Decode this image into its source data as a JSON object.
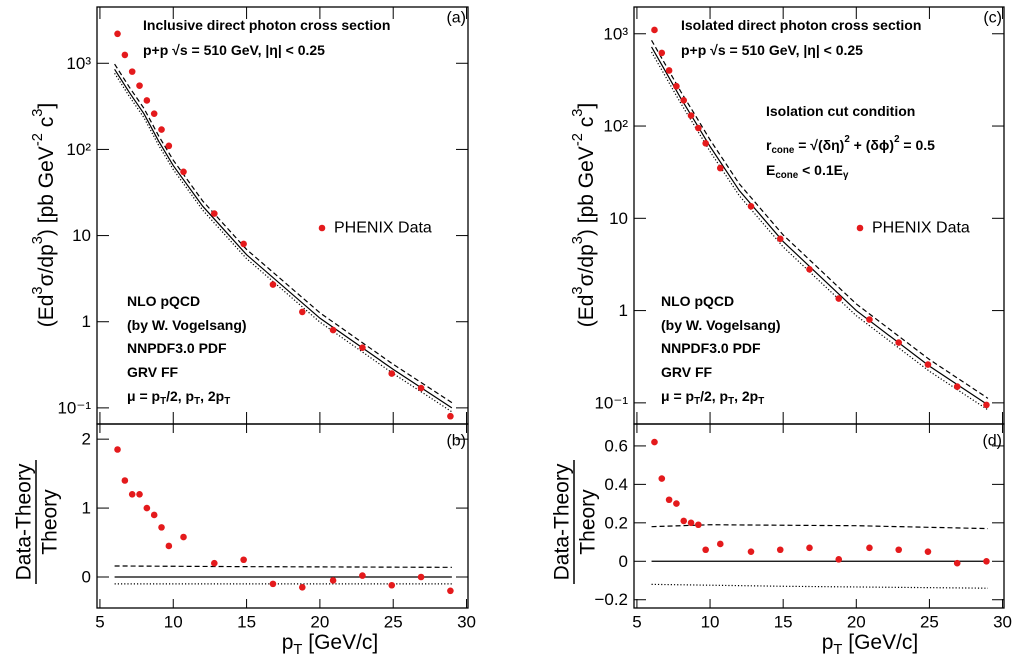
{
  "chart_data": [
    {
      "type": "scatter",
      "log_y": true,
      "panel_label": "(a)",
      "color": "#e41a1c",
      "x": [
        6.2,
        6.7,
        7.2,
        7.7,
        8.2,
        8.7,
        9.2,
        9.7,
        10.7,
        12.8,
        14.8,
        16.8,
        18.8,
        20.9,
        22.9,
        24.9,
        26.9,
        28.9
      ],
      "values": [
        2200,
        1250,
        800,
        550,
        370,
        260,
        170,
        110,
        55,
        18,
        8,
        2.7,
        1.3,
        0.8,
        0.5,
        0.25,
        0.17,
        0.08
      ],
      "xlim": [
        4.8,
        30.1
      ],
      "xticks": [
        5,
        10,
        15,
        20,
        25,
        30
      ],
      "ylim": [
        0.065,
        4500
      ],
      "yticks": [
        {
          "value": 1000,
          "label": "10³"
        },
        {
          "value": 100,
          "label": "10²"
        },
        10,
        1,
        {
          "value": 0.1,
          "label": "10⁻¹"
        }
      ],
      "y_label": [
        {
          "text": "(Ed"
        },
        {
          "text": "3",
          "shift": "sup"
        },
        {
          "text": "σ/dp"
        },
        {
          "text": "3",
          "shift": "sup"
        },
        {
          "text": ") [pb GeV"
        },
        {
          "text": "-2",
          "shift": "sup"
        },
        {
          "text": " c"
        },
        {
          "text": "3",
          "shift": "sup"
        },
        {
          "text": "]"
        }
      ],
      "legend": "PHENIX Data",
      "annotations": [
        [
          {
            "text": "Inclusive direct photon cross section"
          }
        ],
        [
          {
            "text": "p+p  √s = 510 GeV, |η| < 0.25"
          }
        ],
        [
          {
            "text": "NLO pQCD"
          }
        ],
        [
          {
            "text": "(by W. Vogelsang)"
          }
        ],
        [
          {
            "text": "NNPDF3.0 PDF"
          }
        ],
        [
          {
            "text": "GRV FF"
          }
        ],
        [
          {
            "text": "μ = p"
          },
          {
            "text": "T",
            "shift": "sub"
          },
          {
            "text": "/2, p"
          },
          {
            "text": "T",
            "shift": "sub"
          },
          {
            "text": ", 2p"
          },
          {
            "text": "T",
            "shift": "sub"
          }
        ]
      ],
      "curves": [
        {
          "style": "solid",
          "x": [
            6,
            7,
            8,
            9,
            10,
            12,
            15,
            20,
            25,
            29
          ],
          "values": [
            850,
            460,
            260,
            125,
            65,
            22,
            6,
            1.1,
            0.28,
            0.1
          ]
        },
        {
          "style": "dashed",
          "x": [
            6,
            7,
            8,
            9,
            10,
            12,
            15,
            20,
            25,
            29
          ],
          "values": [
            980,
            530,
            300,
            144,
            75,
            25.3,
            6.9,
            1.27,
            0.32,
            0.115
          ]
        },
        {
          "style": "dotted",
          "x": [
            6,
            7,
            8,
            9,
            10,
            12,
            15,
            20,
            25,
            29
          ],
          "values": [
            765,
            414,
            234,
            112,
            58.5,
            19.8,
            5.4,
            0.99,
            0.25,
            0.09
          ]
        }
      ]
    },
    {
      "type": "scatter",
      "log_y": false,
      "panel_label": "(b)",
      "color": "#e41a1c",
      "x": [
        6.2,
        6.7,
        7.2,
        7.7,
        8.2,
        8.7,
        9.2,
        9.7,
        10.7,
        12.8,
        14.8,
        16.8,
        18.8,
        20.9,
        22.9,
        24.9,
        26.9,
        28.9
      ],
      "values": [
        1.85,
        1.4,
        1.2,
        1.2,
        1.0,
        0.9,
        0.72,
        0.45,
        0.58,
        0.2,
        0.25,
        -0.1,
        -0.15,
        -0.05,
        0.02,
        -0.12,
        0,
        -0.2
      ],
      "xlim": [
        4.8,
        30.1
      ],
      "xticks": [
        5,
        10,
        15,
        20,
        25,
        30
      ],
      "ylim": [
        -0.45,
        2.22
      ],
      "yticks": [
        0,
        1,
        2
      ],
      "ratio_top": "Data-Theory",
      "ratio_bottom": "Theory",
      "x_label": [
        {
          "text": "p"
        },
        {
          "text": "T",
          "shift": "sub"
        },
        {
          "text": " [GeV/c]"
        }
      ],
      "curves": [
        {
          "style": "solid",
          "x": [
            6,
            29
          ],
          "values": [
            0,
            0
          ]
        },
        {
          "style": "dashed",
          "x": [
            6,
            15,
            29
          ],
          "values": [
            0.16,
            0.15,
            0.14
          ]
        },
        {
          "style": "dotted",
          "x": [
            6,
            15,
            29
          ],
          "values": [
            -0.1,
            -0.1,
            -0.1
          ]
        }
      ]
    },
    {
      "type": "scatter",
      "log_y": true,
      "panel_label": "(c)",
      "color": "#e41a1c",
      "x": [
        6.2,
        6.7,
        7.2,
        7.7,
        8.2,
        8.7,
        9.2,
        9.7,
        10.7,
        12.8,
        14.8,
        16.8,
        18.8,
        20.9,
        22.9,
        24.9,
        26.9,
        28.9
      ],
      "values": [
        1100,
        620,
        400,
        270,
        190,
        130,
        95,
        65,
        35,
        13.5,
        6,
        2.8,
        1.35,
        0.8,
        0.45,
        0.26,
        0.15,
        0.095
      ],
      "xlim": [
        4.8,
        30.1
      ],
      "xticks": [
        5,
        10,
        15,
        20,
        25,
        30
      ],
      "ylim": [
        0.059,
        1950
      ],
      "yticks": [
        {
          "value": 1000,
          "label": "10³"
        },
        {
          "value": 100,
          "label": "10²"
        },
        10,
        1,
        {
          "value": 0.1,
          "label": "10⁻¹"
        }
      ],
      "y_label": [
        {
          "text": "(Ed"
        },
        {
          "text": "3",
          "shift": "sup"
        },
        {
          "text": "σ/dp"
        },
        {
          "text": "3",
          "shift": "sup"
        },
        {
          "text": ") [pb GeV"
        },
        {
          "text": "-2",
          "shift": "sup"
        },
        {
          "text": " c"
        },
        {
          "text": "3",
          "shift": "sup"
        },
        {
          "text": "]"
        }
      ],
      "legend": "PHENIX Data",
      "annotations": [
        [
          {
            "text": "Isolated direct photon cross section"
          }
        ],
        [
          {
            "text": "p+p  √s = 510 GeV, |η| < 0.25"
          }
        ],
        [
          {
            "text": "Isolation cut condition"
          }
        ],
        [
          {
            "text": "r"
          },
          {
            "text": "cone",
            "shift": "sub"
          },
          {
            "text": " = √"
          },
          {
            "text": "(δη)"
          },
          {
            "text": "2",
            "shift": "sup"
          },
          {
            "text": " + (δϕ)"
          },
          {
            "text": "2",
            "shift": "sup"
          },
          {
            "text": " = 0.5"
          }
        ],
        [
          {
            "text": "E"
          },
          {
            "text": "cone",
            "shift": "sub"
          },
          {
            "text": " < 0.1E"
          },
          {
            "text": "γ",
            "shift": "sub"
          }
        ],
        [
          {
            "text": "NLO pQCD"
          }
        ],
        [
          {
            "text": "(by W. Vogelsang)"
          }
        ],
        [
          {
            "text": "NNPDF3.0 PDF"
          }
        ],
        [
          {
            "text": "GRV FF"
          }
        ],
        [
          {
            "text": "μ = p"
          },
          {
            "text": "T",
            "shift": "sub"
          },
          {
            "text": "/2, p"
          },
          {
            "text": "T",
            "shift": "sub"
          },
          {
            "text": ", 2p"
          },
          {
            "text": "T",
            "shift": "sub"
          }
        ]
      ],
      "curves": [
        {
          "style": "solid",
          "x": [
            6,
            7,
            8,
            9,
            10,
            12,
            15,
            20,
            25,
            29
          ],
          "values": [
            720,
            380,
            200,
            110,
            60,
            20,
            5.6,
            1.0,
            0.25,
            0.095
          ]
        },
        {
          "style": "dashed",
          "x": [
            6,
            7,
            8,
            9,
            10,
            12,
            15,
            20,
            25,
            29
          ],
          "values": [
            850,
            448,
            236,
            130,
            71,
            23.6,
            6.6,
            1.18,
            0.295,
            0.112
          ]
        },
        {
          "style": "dotted",
          "x": [
            6,
            7,
            8,
            9,
            10,
            12,
            15,
            20,
            25,
            29
          ],
          "values": [
            634,
            334,
            176,
            97,
            53,
            17.6,
            4.9,
            0.88,
            0.22,
            0.084
          ]
        }
      ]
    },
    {
      "type": "scatter",
      "log_y": false,
      "panel_label": "(d)",
      "color": "#e41a1c",
      "x": [
        6.2,
        6.7,
        7.2,
        7.7,
        8.2,
        8.7,
        9.2,
        9.7,
        10.7,
        12.8,
        14.8,
        16.8,
        18.8,
        20.9,
        22.9,
        24.9,
        26.9,
        28.9
      ],
      "values": [
        0.62,
        0.43,
        0.32,
        0.3,
        0.21,
        0.2,
        0.19,
        0.06,
        0.09,
        0.05,
        0.06,
        0.07,
        0.01,
        0.07,
        0.06,
        0.05,
        -0.01,
        0
      ],
      "xlim": [
        4.8,
        30.1
      ],
      "xticks": [
        5,
        10,
        15,
        20,
        25,
        30
      ],
      "ylim": [
        -0.243,
        0.714
      ],
      "yticks": [
        {
          "value": -0.2,
          "label": "−0.2"
        },
        0,
        0.2,
        0.4,
        0.6
      ],
      "ratio_top": "Data-Theory",
      "ratio_bottom": "Theory",
      "x_label": [
        {
          "text": "p"
        },
        {
          "text": "T",
          "shift": "sub"
        },
        {
          "text": " [GeV/c]"
        }
      ],
      "curves": [
        {
          "style": "solid",
          "x": [
            6,
            29
          ],
          "values": [
            0,
            0
          ]
        },
        {
          "style": "dashed",
          "x": [
            6,
            10,
            20,
            29
          ],
          "values": [
            0.18,
            0.19,
            0.185,
            0.17
          ]
        },
        {
          "style": "dotted",
          "x": [
            6,
            15,
            29
          ],
          "values": [
            -0.12,
            -0.13,
            -0.14
          ]
        }
      ]
    }
  ]
}
